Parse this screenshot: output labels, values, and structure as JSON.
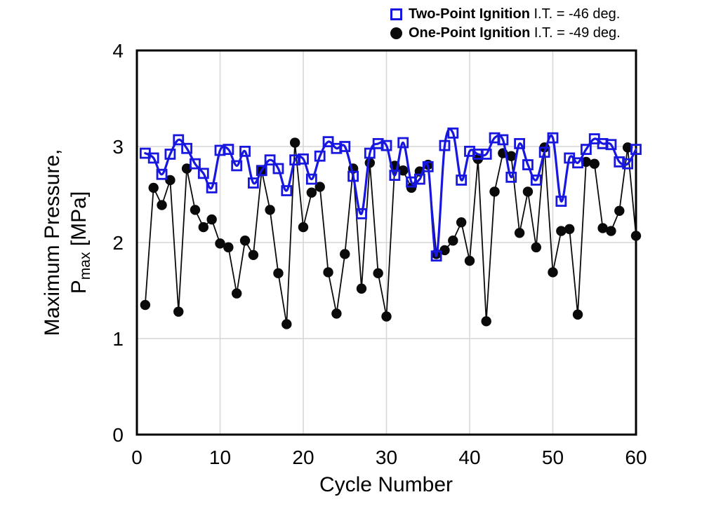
{
  "chart_data": {
    "type": "line",
    "title": "",
    "xlabel": "Cycle Number",
    "ylabel_line1": "Maximum Pressure,",
    "ylabel_line2_main": "P",
    "ylabel_line2_sub": "max",
    "ylabel_line2_rest": " [MPa]",
    "xlim": [
      0,
      60
    ],
    "ylim": [
      0,
      4
    ],
    "x_ticks": [
      0,
      10,
      20,
      30,
      40,
      50,
      60
    ],
    "y_ticks": [
      0,
      1,
      2,
      3,
      4
    ],
    "grid": true,
    "legend_position": "top-right",
    "x": [
      1,
      2,
      3,
      4,
      5,
      6,
      7,
      8,
      9,
      10,
      11,
      12,
      13,
      14,
      15,
      16,
      17,
      18,
      19,
      20,
      21,
      22,
      23,
      24,
      25,
      26,
      27,
      28,
      29,
      30,
      31,
      32,
      33,
      34,
      35,
      36,
      37,
      38,
      39,
      40,
      41,
      42,
      43,
      44,
      45,
      46,
      47,
      48,
      49,
      50,
      51,
      52,
      53,
      54,
      55,
      56,
      57,
      58,
      59,
      60
    ],
    "series": [
      {
        "name": "Two-Point Ignition",
        "legend_bold": "Two-Point Ignition",
        "legend_rest": " I.T. = -46 deg.",
        "marker": "open-square",
        "color": "#1717e0",
        "line_style": "smooth",
        "line_width": 3.2,
        "values": [
          2.93,
          2.88,
          2.71,
          2.92,
          3.07,
          2.98,
          2.82,
          2.72,
          2.57,
          2.96,
          2.97,
          2.8,
          2.95,
          2.62,
          2.75,
          2.86,
          2.77,
          2.54,
          2.86,
          2.87,
          2.66,
          2.9,
          3.05,
          2.98,
          3.0,
          2.69,
          2.3,
          2.93,
          3.03,
          3.01,
          2.7,
          3.04,
          2.63,
          2.66,
          2.79,
          1.86,
          3.01,
          3.14,
          2.65,
          2.95,
          2.92,
          2.92,
          3.09,
          3.07,
          2.68,
          3.03,
          2.81,
          2.65,
          2.94,
          3.09,
          2.43,
          2.88,
          2.83,
          2.97,
          3.08,
          3.03,
          3.02,
          2.84,
          2.82,
          2.97
        ]
      },
      {
        "name": "One-Point Ignition",
        "legend_bold": "One-Point Ignition",
        "legend_rest": " I.T. = -49 deg.",
        "marker": "filled-circle",
        "color": "#0a0a0a",
        "line_style": "straight",
        "line_width": 1.8,
        "values": [
          1.35,
          2.57,
          2.39,
          2.65,
          1.28,
          2.77,
          2.34,
          2.16,
          2.24,
          1.99,
          1.95,
          1.47,
          2.02,
          1.87,
          2.75,
          2.34,
          1.68,
          1.15,
          3.04,
          2.16,
          2.52,
          2.58,
          1.69,
          1.26,
          1.88,
          2.77,
          1.52,
          2.83,
          1.68,
          1.23,
          2.8,
          2.75,
          2.57,
          2.74,
          2.81,
          1.88,
          1.92,
          2.02,
          2.21,
          1.81,
          2.87,
          1.18,
          2.53,
          2.93,
          2.9,
          2.1,
          2.53,
          1.95,
          2.99,
          1.69,
          2.12,
          2.14,
          1.25,
          2.84,
          2.82,
          2.15,
          2.12,
          2.33,
          2.99,
          2.07
        ]
      }
    ]
  },
  "colors": {
    "background": "#ffffff",
    "frame": "#000000",
    "grid": "#d6d6d6",
    "accent_blue": "#1717e0",
    "series_black": "#0a0a0a"
  }
}
